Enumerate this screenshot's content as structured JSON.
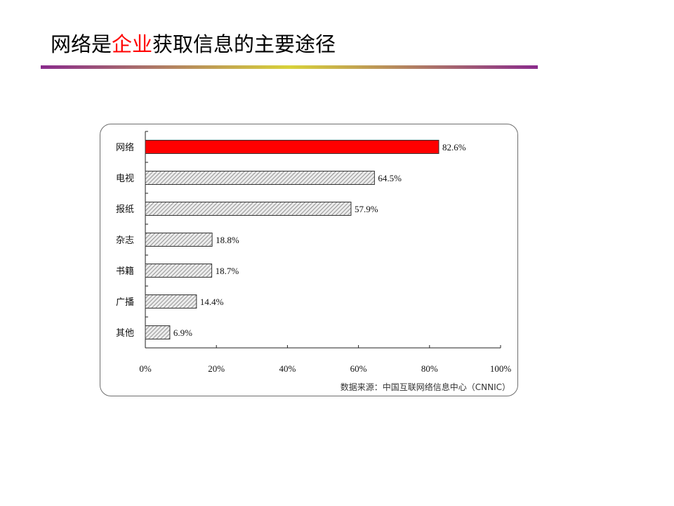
{
  "slide": {
    "title_parts": [
      "网络是",
      "企业",
      "获取信息的主要途径"
    ],
    "highlight_color": "#ff0000"
  },
  "chart_data": {
    "type": "bar",
    "orientation": "horizontal",
    "categories": [
      "网络",
      "电视",
      "报纸",
      "杂志",
      "书籍",
      "广播",
      "其他"
    ],
    "values": [
      82.6,
      64.5,
      57.9,
      18.8,
      18.7,
      14.4,
      6.9
    ],
    "value_labels": [
      "82.6%",
      "64.5%",
      "57.9%",
      "18.8%",
      "18.7%",
      "14.4%",
      "6.9%"
    ],
    "xlim": [
      0,
      100
    ],
    "x_ticks": [
      0,
      20,
      40,
      60,
      80,
      100
    ],
    "x_tick_labels": [
      "0%",
      "20%",
      "40%",
      "60%",
      "80%",
      "100%"
    ],
    "highlight_category": "网络",
    "highlight_color": "#ff0000",
    "bar_fill": "hatched grey",
    "source_note": "数据来源：中国互联网络信息中心（CNNIC）",
    "grid": false
  }
}
